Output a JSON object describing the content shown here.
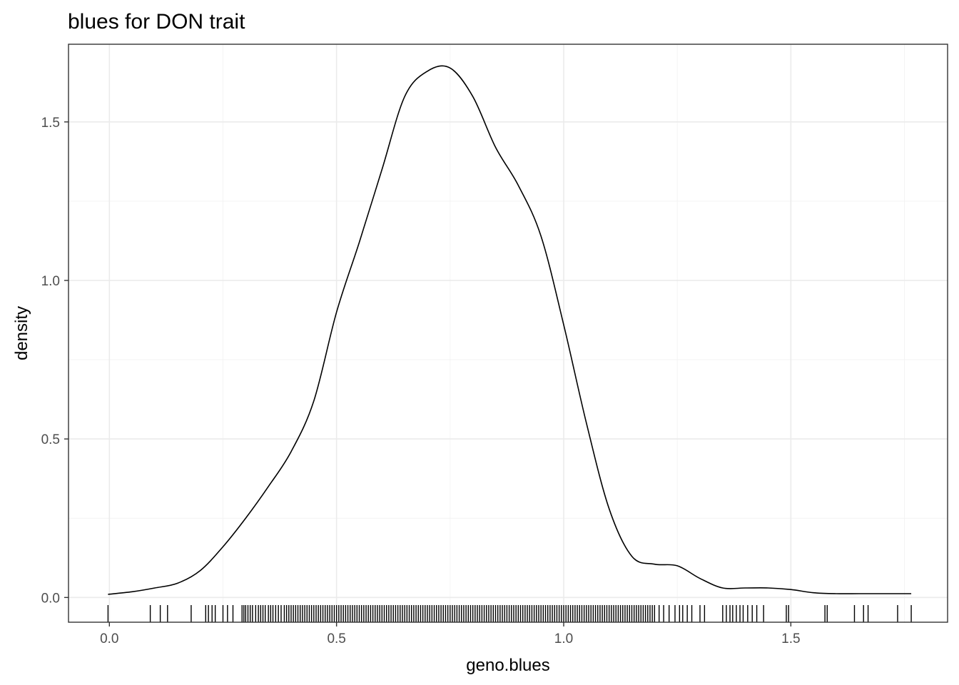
{
  "chart_data": {
    "type": "line",
    "title": "blues for DON trait",
    "xlabel": "geno.blues",
    "ylabel": "density",
    "xlim": [
      -0.09,
      1.845
    ],
    "ylim": [
      -0.078,
      1.745
    ],
    "x_ticks": [
      0.0,
      0.5,
      1.0,
      1.5
    ],
    "x_tick_labels": [
      "0.0",
      "0.5",
      "1.0",
      "1.5"
    ],
    "y_ticks": [
      0.0,
      0.5,
      1.0,
      1.5
    ],
    "y_tick_labels": [
      "0.0",
      "0.5",
      "1.0",
      "1.5"
    ],
    "grid": true,
    "theme": "bw",
    "series": [
      {
        "x": [
          -0.003,
          0.05,
          0.1,
          0.15,
          0.2,
          0.25,
          0.3,
          0.35,
          0.4,
          0.45,
          0.5,
          0.55,
          0.6,
          0.65,
          0.7,
          0.75,
          0.8,
          0.85,
          0.9,
          0.95,
          1.0,
          1.05,
          1.1,
          1.15,
          1.2,
          1.25,
          1.3,
          1.35,
          1.4,
          1.45,
          1.5,
          1.55,
          1.6,
          1.65,
          1.7,
          1.765
        ],
        "y": [
          0.01,
          0.018,
          0.03,
          0.045,
          0.085,
          0.16,
          0.25,
          0.35,
          0.46,
          0.62,
          0.9,
          1.12,
          1.35,
          1.58,
          1.66,
          1.67,
          1.58,
          1.42,
          1.3,
          1.14,
          0.86,
          0.55,
          0.28,
          0.13,
          0.105,
          0.1,
          0.06,
          0.03,
          0.03,
          0.03,
          0.025,
          0.015,
          0.012,
          0.012,
          0.012,
          0.012
        ]
      }
    ],
    "rug": [
      -0.003,
      0.09,
      0.112,
      0.128,
      0.18,
      0.212,
      0.218,
      0.226,
      0.233,
      0.25,
      0.26,
      0.272,
      0.292,
      0.296,
      0.3,
      0.305,
      0.31,
      0.315,
      0.322,
      0.328,
      0.333,
      0.338,
      0.343,
      0.35,
      0.355,
      0.36,
      0.366,
      0.372,
      0.378,
      0.385,
      0.39,
      0.395,
      0.4,
      0.405,
      0.41,
      0.415,
      0.42,
      0.425,
      0.43,
      0.435,
      0.44,
      0.445,
      0.45,
      0.455,
      0.46,
      0.465,
      0.47,
      0.475,
      0.48,
      0.485,
      0.49,
      0.495,
      0.5,
      0.505,
      0.51,
      0.515,
      0.52,
      0.525,
      0.53,
      0.535,
      0.54,
      0.545,
      0.55,
      0.555,
      0.56,
      0.565,
      0.57,
      0.575,
      0.58,
      0.585,
      0.59,
      0.595,
      0.6,
      0.605,
      0.61,
      0.615,
      0.62,
      0.625,
      0.63,
      0.635,
      0.64,
      0.645,
      0.65,
      0.655,
      0.66,
      0.665,
      0.67,
      0.675,
      0.68,
      0.685,
      0.69,
      0.695,
      0.7,
      0.705,
      0.71,
      0.715,
      0.72,
      0.725,
      0.73,
      0.735,
      0.74,
      0.745,
      0.75,
      0.755,
      0.76,
      0.765,
      0.77,
      0.775,
      0.78,
      0.785,
      0.79,
      0.795,
      0.8,
      0.805,
      0.81,
      0.815,
      0.82,
      0.825,
      0.83,
      0.835,
      0.84,
      0.845,
      0.85,
      0.855,
      0.86,
      0.865,
      0.87,
      0.875,
      0.88,
      0.885,
      0.89,
      0.895,
      0.9,
      0.905,
      0.91,
      0.915,
      0.92,
      0.925,
      0.93,
      0.935,
      0.94,
      0.945,
      0.95,
      0.955,
      0.96,
      0.965,
      0.97,
      0.975,
      0.98,
      0.985,
      0.99,
      0.995,
      1.0,
      1.005,
      1.01,
      1.015,
      1.02,
      1.025,
      1.03,
      1.035,
      1.04,
      1.045,
      1.05,
      1.055,
      1.06,
      1.065,
      1.07,
      1.075,
      1.08,
      1.085,
      1.09,
      1.095,
      1.1,
      1.105,
      1.11,
      1.115,
      1.12,
      1.125,
      1.13,
      1.135,
      1.14,
      1.145,
      1.15,
      1.155,
      1.16,
      1.165,
      1.17,
      1.175,
      1.18,
      1.185,
      1.19,
      1.195,
      1.2,
      1.21,
      1.22,
      1.232,
      1.245,
      1.255,
      1.262,
      1.272,
      1.282,
      1.3,
      1.31,
      1.35,
      1.358,
      1.366,
      1.372,
      1.38,
      1.388,
      1.395,
      1.405,
      1.415,
      1.425,
      1.44,
      1.49,
      1.495,
      1.575,
      1.58,
      1.64,
      1.66,
      1.67,
      1.735,
      1.765
    ]
  }
}
